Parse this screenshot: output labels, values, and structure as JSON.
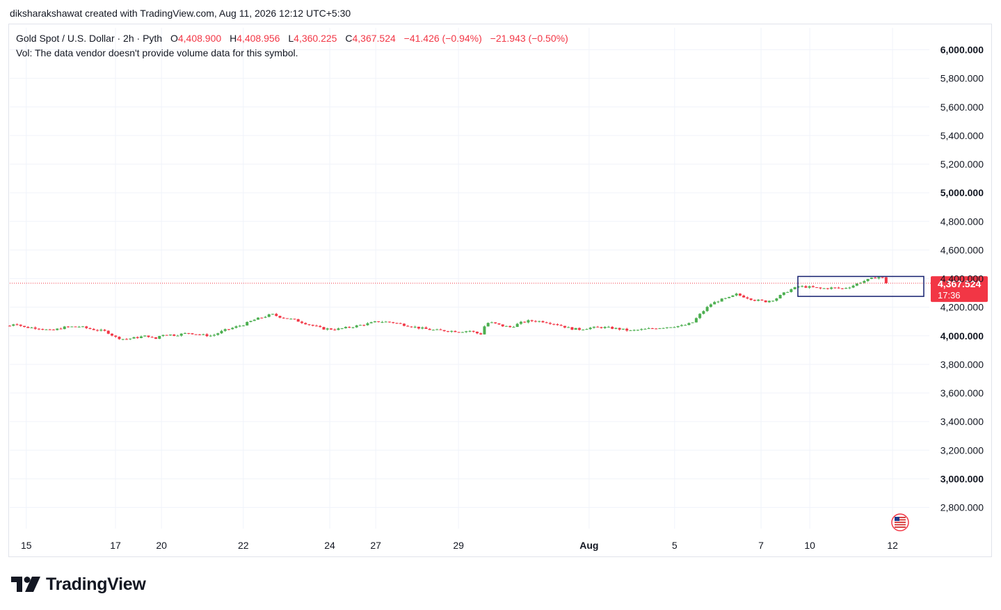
{
  "header": {
    "credit": "diksharakshawat created with TradingView.com, Aug 11, 2026 12:12 UTC+5:30"
  },
  "legend": {
    "symbol": "Gold Spot / U.S. Dollar · 2h · Pyth",
    "open_label": "O",
    "open": "4,408.900",
    "high_label": "H",
    "high": "4,408.956",
    "low_label": "L",
    "low": "4,360.225",
    "close_label": "C",
    "close": "4,367.524",
    "change": "−41.426 (−0.94%)",
    "change2": "−21.943 (−0.50%)",
    "volume_note": "Vol: The data vendor doesn't provide volume data for this symbol."
  },
  "price_tag": {
    "value": "4,367.524",
    "countdown": "17:36",
    "color": "#f23645"
  },
  "colors": {
    "up": "#4caf50",
    "down": "#f23645",
    "grid": "#f0f3fa",
    "box": "#131e6e"
  },
  "icons": {
    "flag": "us-flag-icon",
    "logo": "tradingview-logo-icon"
  },
  "logo_text": "TradingView",
  "chart_data": {
    "type": "candlestick",
    "title": "Gold Spot / U.S. Dollar · 2h · Pyth",
    "ylim": [
      2600,
      6150
    ],
    "y_ticks": [
      "6,000.000",
      "5,800.000",
      "5,600.000",
      "5,400.000",
      "5,200.000",
      "5,000.000",
      "4,800.000",
      "4,600.000",
      "4,400.000",
      "4,200.000",
      "4,000.000",
      "3,800.000",
      "3,600.000",
      "3,400.000",
      "3,200.000",
      "3,000.000",
      "2,800.000"
    ],
    "y_tick_values": [
      6000,
      5800,
      5600,
      5400,
      5200,
      5000,
      4800,
      4600,
      4400,
      4200,
      4000,
      3800,
      3600,
      3400,
      3200,
      3000,
      2800
    ],
    "y_bold": [
      6000,
      5000,
      4000,
      3000
    ],
    "x_ticks": [
      {
        "label": "15",
        "pos": 0.018
      },
      {
        "label": "17",
        "pos": 0.115
      },
      {
        "label": "20",
        "pos": 0.165
      },
      {
        "label": "22",
        "pos": 0.254
      },
      {
        "label": "24",
        "pos": 0.348
      },
      {
        "label": "27",
        "pos": 0.398
      },
      {
        "label": "29",
        "pos": 0.488
      },
      {
        "label": "Aug",
        "pos": 0.63,
        "bold": true
      },
      {
        "label": "5",
        "pos": 0.723
      },
      {
        "label": "7",
        "pos": 0.817
      },
      {
        "label": "10",
        "pos": 0.87
      },
      {
        "label": "12",
        "pos": 0.96
      }
    ],
    "grid": true,
    "last_close": 4367.524,
    "close_path": [
      [
        0.0,
        4070
      ],
      [
        0.006,
        4090
      ],
      [
        0.015,
        4060
      ],
      [
        0.03,
        4055
      ],
      [
        0.045,
        4035
      ],
      [
        0.06,
        4060
      ],
      [
        0.075,
        4065
      ],
      [
        0.09,
        4045
      ],
      [
        0.105,
        4030
      ],
      [
        0.115,
        3990
      ],
      [
        0.125,
        3975
      ],
      [
        0.14,
        3990
      ],
      [
        0.15,
        4000
      ],
      [
        0.158,
        3975
      ],
      [
        0.165,
        4010
      ],
      [
        0.18,
        4005
      ],
      [
        0.195,
        4020
      ],
      [
        0.21,
        4005
      ],
      [
        0.22,
        4000
      ],
      [
        0.232,
        4035
      ],
      [
        0.245,
        4060
      ],
      [
        0.255,
        4080
      ],
      [
        0.265,
        4110
      ],
      [
        0.275,
        4130
      ],
      [
        0.285,
        4150
      ],
      [
        0.295,
        4130
      ],
      [
        0.31,
        4110
      ],
      [
        0.325,
        4080
      ],
      [
        0.34,
        4050
      ],
      [
        0.355,
        4045
      ],
      [
        0.365,
        4055
      ],
      [
        0.378,
        4070
      ],
      [
        0.39,
        4085
      ],
      [
        0.4,
        4100
      ],
      [
        0.415,
        4095
      ],
      [
        0.43,
        4075
      ],
      [
        0.445,
        4055
      ],
      [
        0.46,
        4040
      ],
      [
        0.475,
        4035
      ],
      [
        0.49,
        4030
      ],
      [
        0.5,
        4035
      ],
      [
        0.512,
        4010
      ],
      [
        0.518,
        4090
      ],
      [
        0.525,
        4090
      ],
      [
        0.535,
        4070
      ],
      [
        0.545,
        4060
      ],
      [
        0.555,
        4090
      ],
      [
        0.565,
        4105
      ],
      [
        0.58,
        4100
      ],
      [
        0.595,
        4080
      ],
      [
        0.61,
        4050
      ],
      [
        0.62,
        4045
      ],
      [
        0.63,
        4055
      ],
      [
        0.645,
        4060
      ],
      [
        0.66,
        4050
      ],
      [
        0.675,
        4035
      ],
      [
        0.69,
        4045
      ],
      [
        0.705,
        4055
      ],
      [
        0.72,
        4065
      ],
      [
        0.732,
        4070
      ],
      [
        0.742,
        4090
      ],
      [
        0.752,
        4160
      ],
      [
        0.762,
        4220
      ],
      [
        0.772,
        4250
      ],
      [
        0.782,
        4265
      ],
      [
        0.79,
        4290
      ],
      [
        0.8,
        4270
      ],
      [
        0.81,
        4250
      ],
      [
        0.822,
        4240
      ],
      [
        0.832,
        4255
      ],
      [
        0.84,
        4290
      ],
      [
        0.848,
        4320
      ],
      [
        0.858,
        4345
      ],
      [
        0.87,
        4340
      ],
      [
        0.882,
        4330
      ],
      [
        0.895,
        4335
      ],
      [
        0.905,
        4330
      ],
      [
        0.915,
        4345
      ],
      [
        0.925,
        4375
      ],
      [
        0.935,
        4395
      ],
      [
        0.942,
        4410
      ],
      [
        0.948,
        4410
      ],
      [
        0.953,
        4367
      ]
    ]
  }
}
